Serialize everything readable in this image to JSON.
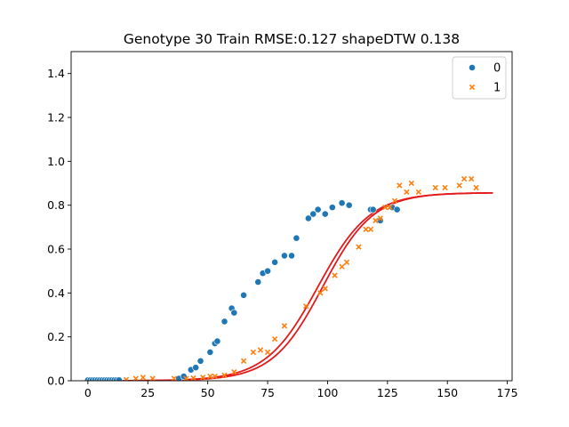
{
  "chart_data": {
    "type": "scatter",
    "title": "Genotype 30 Train RMSE:0.127 shapeDTW 0.138",
    "xlabel": "",
    "ylabel": "",
    "xlim": [
      -7,
      177
    ],
    "ylim": [
      0,
      1.5
    ],
    "xticks": [
      0,
      25,
      50,
      75,
      100,
      125,
      150,
      175
    ],
    "yticks": [
      0.0,
      0.2,
      0.4,
      0.6,
      0.8,
      1.0,
      1.2,
      1.4
    ],
    "grid": false,
    "legend_position": "top-right",
    "colors": {
      "series_0": "#1f77b4",
      "series_1": "#ff7f0e",
      "fit": "#e31a1c"
    },
    "series": [
      {
        "name": "0",
        "marker": "circle",
        "color": "#1f77b4",
        "points": [
          [
            0,
            0.003
          ],
          [
            1,
            0.003
          ],
          [
            2,
            0.003
          ],
          [
            3,
            0.003
          ],
          [
            4,
            0.003
          ],
          [
            5,
            0.003
          ],
          [
            6,
            0.003
          ],
          [
            7,
            0.003
          ],
          [
            8,
            0.003
          ],
          [
            9,
            0.003
          ],
          [
            10,
            0.003
          ],
          [
            11,
            0.003
          ],
          [
            12,
            0.003
          ],
          [
            13,
            0.003
          ],
          [
            38,
            0.01
          ],
          [
            40,
            0.02
          ],
          [
            43,
            0.05
          ],
          [
            45,
            0.06
          ],
          [
            47,
            0.09
          ],
          [
            51,
            0.13
          ],
          [
            53,
            0.17
          ],
          [
            54,
            0.18
          ],
          [
            57,
            0.27
          ],
          [
            60,
            0.33
          ],
          [
            61,
            0.31
          ],
          [
            65,
            0.39
          ],
          [
            71,
            0.45
          ],
          [
            73,
            0.49
          ],
          [
            75,
            0.5
          ],
          [
            78,
            0.54
          ],
          [
            82,
            0.57
          ],
          [
            85,
            0.57
          ],
          [
            87,
            0.65
          ],
          [
            92,
            0.74
          ],
          [
            94,
            0.76
          ],
          [
            96,
            0.78
          ],
          [
            99,
            0.76
          ],
          [
            102,
            0.79
          ],
          [
            106,
            0.81
          ],
          [
            109,
            0.8
          ],
          [
            118,
            0.78
          ],
          [
            119,
            0.78
          ],
          [
            122,
            0.73
          ],
          [
            127,
            0.79
          ],
          [
            129,
            0.78
          ]
        ]
      },
      {
        "name": "1",
        "marker": "x",
        "color": "#ff7f0e",
        "points": [
          [
            16,
            0.005
          ],
          [
            20,
            0.01
          ],
          [
            23,
            0.015
          ],
          [
            27,
            0.01
          ],
          [
            36,
            0.01
          ],
          [
            41,
            0.01
          ],
          [
            44,
            0.012
          ],
          [
            48,
            0.015
          ],
          [
            51,
            0.02
          ],
          [
            53,
            0.02
          ],
          [
            57,
            0.025
          ],
          [
            61,
            0.04
          ],
          [
            65,
            0.09
          ],
          [
            69,
            0.13
          ],
          [
            72,
            0.14
          ],
          [
            75,
            0.13
          ],
          [
            78,
            0.19
          ],
          [
            82,
            0.25
          ],
          [
            91,
            0.34
          ],
          [
            97,
            0.4
          ],
          [
            99,
            0.42
          ],
          [
            103,
            0.48
          ],
          [
            106,
            0.52
          ],
          [
            108,
            0.54
          ],
          [
            113,
            0.61
          ],
          [
            116,
            0.69
          ],
          [
            118,
            0.69
          ],
          [
            120,
            0.73
          ],
          [
            122,
            0.74
          ],
          [
            124,
            0.79
          ],
          [
            126,
            0.79
          ],
          [
            128,
            0.82
          ],
          [
            130,
            0.89
          ],
          [
            133,
            0.86
          ],
          [
            135,
            0.9
          ],
          [
            138,
            0.86
          ],
          [
            145,
            0.88
          ],
          [
            149,
            0.88
          ],
          [
            155,
            0.89
          ],
          [
            157,
            0.92
          ],
          [
            160,
            0.92
          ],
          [
            162,
            0.88
          ]
        ]
      }
    ],
    "fit_curves": [
      {
        "type": "logistic",
        "L": 0.857,
        "k": 0.092,
        "x0": 96,
        "x_range": [
          0,
          169
        ]
      },
      {
        "type": "logistic",
        "L": 0.857,
        "k": 0.095,
        "x0": 98,
        "x_range": [
          0,
          169
        ]
      }
    ]
  }
}
